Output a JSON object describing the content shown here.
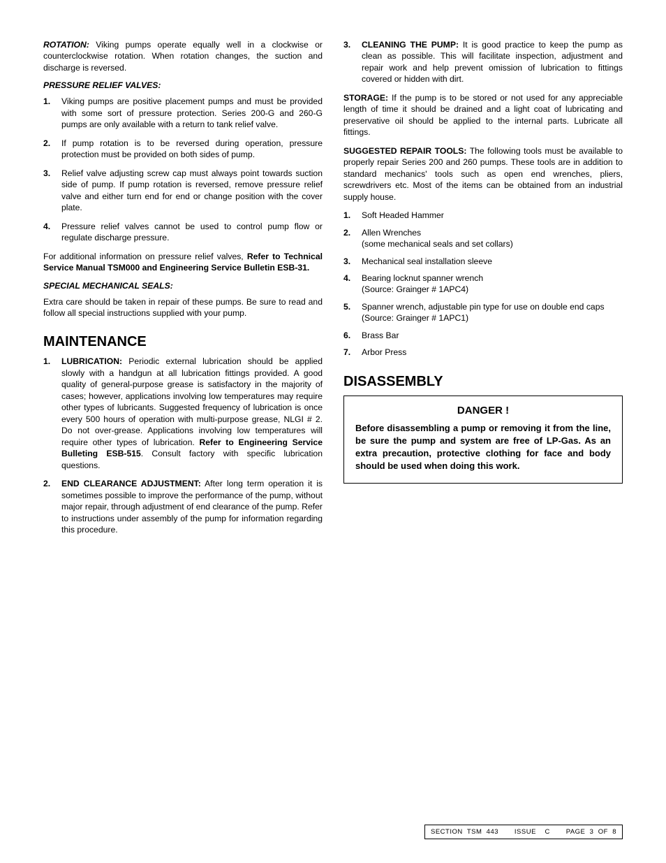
{
  "left": {
    "rotation": {
      "label": "ROTATION:",
      "text": " Viking pumps operate equally well in a clockwise or counterclockwise rotation.  When rotation changes, the suction and discharge is reversed."
    },
    "prv_heading": "PRESSURE RELIEF VALVES:",
    "prv_items": [
      "Viking pumps are positive placement pumps and must be provided with some sort of pressure protection.  Series 200-G and 260-G pumps are only available with a return to tank relief valve.",
      "If pump rotation is to be reversed during operation, pressure protection must be provided on both sides of pump.",
      "Relief valve adjusting screw cap must always point towards suction side of pump.  If pump rotation is reversed, remove pressure relief valve and either turn end for end or change position with the cover plate.",
      "Pressure relief valves cannot be used to control pump flow or regulate discharge pressure."
    ],
    "prv_note_pre": "For additional information on pressure relief valves, ",
    "prv_note_bold": "Refer to Technical Service Manual TSM000 and Engineering Service Bulletin ESB-31.",
    "sms_heading": "SPECIAL MECHANICAL SEALS:",
    "sms_text": "Extra care should be taken in repair of these pumps.  Be sure to read and follow all special instructions supplied with your pump.",
    "maintenance_heading": "MAINTENANCE",
    "maintenance_items": [
      {
        "lead": "LUBRICATION:",
        "text_pre": " Periodic external lubrication should be applied slowly with a handgun at all lubrication fittings provided.  A good quality of general-purpose grease is satisfactory in the majority of cases; however, applications involving low temperatures may require other types of lubricants.  Suggested frequency of lubrication is once every 500 hours of operation with multi-purpose grease, NLGI # 2.  Do not over-grease.  Applications involving low temperatures will require other types of lubrication.  ",
        "text_bold": "Refer to Engineering Service Bulleting ESB-515",
        "text_post": ". Consult factory with specific lubrication questions."
      },
      {
        "lead": "END CLEARANCE ADJUSTMENT:",
        "text_pre": " After long term operation it is sometimes possible to improve the performance of the pump, without major repair, through adjustment of end clearance of the pump.  Refer to instructions under assembly of the pump for information regarding this procedure.",
        "text_bold": "",
        "text_post": ""
      }
    ]
  },
  "right": {
    "cleaning": {
      "lead": "CLEANING THE PUMP:",
      "text": " It is good practice to keep the pump as clean as possible.  This will facilitate inspection, adjustment and repair work and help prevent omission of lubrication to fittings covered or hidden with dirt."
    },
    "storage": {
      "label": "STORAGE:",
      "text": " If the pump is to be stored or not used for any appreciable length of time it should be drained and a light coat of lubricating and preservative oil should be applied to the internal parts.  Lubricate all fittings."
    },
    "tools_intro": {
      "label": "SUGGESTED REPAIR TOOLS:",
      "text": " The following tools must be available to properly repair Series 200 and 260 pumps.  These tools are in addition to standard mechanics' tools such as open end wrenches, pliers, screwdrivers etc.  Most of the items can be obtained from an industrial supply house."
    },
    "tools": [
      {
        "main": "Soft Headed Hammer",
        "note": ""
      },
      {
        "main": "Allen Wrenches",
        "note": "(some mechanical seals and set collars)"
      },
      {
        "main": "Mechanical seal installation sleeve",
        "note": ""
      },
      {
        "main": "Bearing locknut spanner wrench",
        "note": "(Source: Grainger # 1APC4)"
      },
      {
        "main": "Spanner wrench, adjustable pin type for use on double end caps (Source: Grainger # 1APC1)",
        "note": ""
      },
      {
        "main": "Brass Bar",
        "note": ""
      },
      {
        "main": "Arbor Press",
        "note": ""
      }
    ],
    "disassembly_heading": "DISASSEMBLY",
    "danger": {
      "title": "DANGER !",
      "body": "Before disassembling a pump or removing it from the line, be sure the pump and system are free of LP-Gas. As an extra precaution, protective clothing for face and body should be used when doing this work."
    }
  },
  "footer": {
    "section": "SECTION  TSM  443",
    "issue": "ISSUE    C",
    "page": "PAGE  3  OF  8"
  }
}
